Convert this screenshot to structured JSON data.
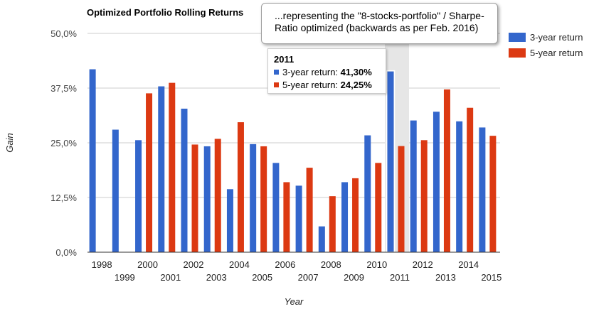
{
  "chart_data": {
    "type": "bar",
    "title": "Optimized Portfolio Rolling Returns",
    "xlabel": "Year",
    "ylabel": "Gain",
    "ylim": [
      0,
      50
    ],
    "yticks": [
      "0,0%",
      "12,5%",
      "25,0%",
      "37,5%",
      "50,0%"
    ],
    "ytick_values": [
      0,
      12.5,
      25,
      37.5,
      50
    ],
    "grid": true,
    "legend_position": "right",
    "categories": [
      "1998",
      "1999",
      "2000",
      "2001",
      "2002",
      "2003",
      "2004",
      "2005",
      "2006",
      "2007",
      "2008",
      "2009",
      "2010",
      "2011",
      "2012",
      "2013",
      "2014",
      "2015"
    ],
    "series": [
      {
        "name": "3-year return",
        "color": "#3366cc",
        "values": [
          41.8,
          28.0,
          25.6,
          37.9,
          32.8,
          24.2,
          14.4,
          24.7,
          20.4,
          15.2,
          5.9,
          16.0,
          26.7,
          41.3,
          30.1,
          32.1,
          29.9,
          28.5
        ]
      },
      {
        "name": "5-year return",
        "color": "#dc3912",
        "values": [
          null,
          null,
          36.3,
          38.7,
          24.6,
          25.9,
          29.7,
          24.2,
          16.0,
          19.3,
          12.8,
          16.9,
          20.4,
          24.25,
          25.6,
          37.2,
          33.0,
          26.6
        ]
      }
    ],
    "highlighted_category": "2011",
    "annotation": "...representing the \"8-stocks-portfolio\" / Sharpe-Ratio optimized (backwards as per Feb. 2016)"
  },
  "tooltip": {
    "year": "2011",
    "rows": [
      {
        "label": "3-year return:",
        "value": "41,30%",
        "color": "#3366cc"
      },
      {
        "label": "5-year return:",
        "value": "24,25%",
        "color": "#dc3912"
      }
    ]
  }
}
